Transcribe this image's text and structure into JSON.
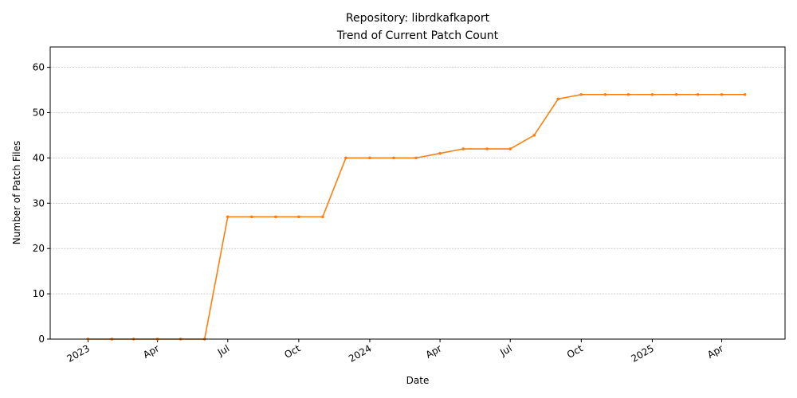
{
  "chart_data": {
    "type": "line",
    "title": "Repository: librdkafkaport",
    "subtitle": "Trend of Current Patch Count",
    "xlabel": "Date",
    "ylabel": "Number of Patch Files",
    "ylim": [
      0,
      64.5
    ],
    "xlim": [
      "2022-11-13",
      "2025-06-22"
    ],
    "grid": "horizontal-dashed",
    "series_color": "#ff7f0e",
    "x_ticks": [
      {
        "date": "2023-01-01",
        "label": "2023"
      },
      {
        "date": "2023-04-01",
        "label": "Apr"
      },
      {
        "date": "2023-07-01",
        "label": "Jul"
      },
      {
        "date": "2023-10-01",
        "label": "Oct"
      },
      {
        "date": "2024-01-01",
        "label": "2024"
      },
      {
        "date": "2024-04-01",
        "label": "Apr"
      },
      {
        "date": "2024-07-01",
        "label": "Jul"
      },
      {
        "date": "2024-10-01",
        "label": "Oct"
      },
      {
        "date": "2025-01-01",
        "label": "2025"
      },
      {
        "date": "2025-04-01",
        "label": "Apr"
      }
    ],
    "y_ticks": [
      0,
      10,
      20,
      30,
      40,
      50,
      60
    ],
    "series": [
      {
        "x": [
          "2023-01-01",
          "2023-02-01",
          "2023-03-01",
          "2023-04-01",
          "2023-05-01",
          "2023-06-01",
          "2023-07-01",
          "2023-08-01",
          "2023-09-01",
          "2023-10-01",
          "2023-11-01",
          "2023-12-01",
          "2024-01-01",
          "2024-02-01",
          "2024-03-01",
          "2024-04-01",
          "2024-05-01",
          "2024-06-01",
          "2024-07-01",
          "2024-08-01",
          "2024-09-01",
          "2024-10-01",
          "2024-11-01",
          "2024-12-01",
          "2025-01-01",
          "2025-02-01",
          "2025-03-01",
          "2025-04-01",
          "2025-05-01"
        ],
        "values": [
          0,
          0,
          0,
          0,
          0,
          0,
          27,
          27,
          27,
          27,
          27,
          40,
          40,
          40,
          40,
          41,
          42,
          42,
          42,
          45,
          53,
          54,
          54,
          54,
          54,
          54,
          54,
          54,
          54
        ]
      }
    ]
  }
}
